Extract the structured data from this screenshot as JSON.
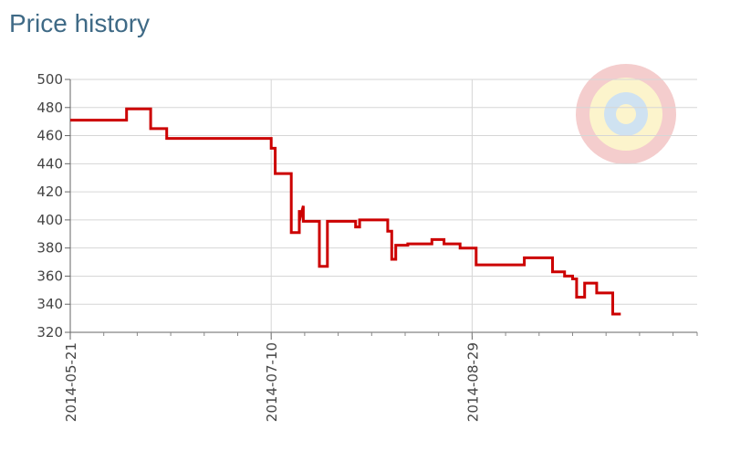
{
  "page": {
    "title": "Price history"
  },
  "chart_data": {
    "type": "line",
    "title": "Price history",
    "xlabel": "",
    "ylabel": "",
    "x_is_date": true,
    "xlim": [
      "2014-05-21",
      "2014-10-24"
    ],
    "ylim": [
      320,
      500
    ],
    "y_ticks": [
      320,
      340,
      360,
      380,
      400,
      420,
      440,
      460,
      480,
      500
    ],
    "x_ticks": [
      "2014-05-21",
      "2014-07-10",
      "2014-08-29"
    ],
    "grid": true,
    "step": true,
    "series": [
      {
        "name": "",
        "color": "#cc0000",
        "points": [
          [
            "2014-05-21",
            471
          ],
          [
            "2014-06-04",
            471
          ],
          [
            "2014-06-04",
            479
          ],
          [
            "2014-06-10",
            479
          ],
          [
            "2014-06-10",
            465
          ],
          [
            "2014-06-14",
            465
          ],
          [
            "2014-06-14",
            458
          ],
          [
            "2014-07-10",
            458
          ],
          [
            "2014-07-10",
            451
          ],
          [
            "2014-07-11",
            451
          ],
          [
            "2014-07-11",
            433
          ],
          [
            "2014-07-15",
            433
          ],
          [
            "2014-07-15",
            391
          ],
          [
            "2014-07-17",
            391
          ],
          [
            "2014-07-17",
            407
          ],
          [
            "2014-07-17",
            399
          ],
          [
            "2014-07-18",
            410
          ],
          [
            "2014-07-18",
            399
          ],
          [
            "2014-07-22",
            399
          ],
          [
            "2014-07-22",
            367
          ],
          [
            "2014-07-24",
            367
          ],
          [
            "2014-07-24",
            399
          ],
          [
            "2014-07-31",
            399
          ],
          [
            "2014-07-31",
            395
          ],
          [
            "2014-08-01",
            395
          ],
          [
            "2014-08-01",
            400
          ],
          [
            "2014-08-08",
            400
          ],
          [
            "2014-08-08",
            392
          ],
          [
            "2014-08-09",
            392
          ],
          [
            "2014-08-09",
            372
          ],
          [
            "2014-08-10",
            372
          ],
          [
            "2014-08-10",
            382
          ],
          [
            "2014-08-13",
            382
          ],
          [
            "2014-08-13",
            383
          ],
          [
            "2014-08-19",
            383
          ],
          [
            "2014-08-19",
            386
          ],
          [
            "2014-08-22",
            386
          ],
          [
            "2014-08-22",
            383
          ],
          [
            "2014-08-26",
            383
          ],
          [
            "2014-08-26",
            380
          ],
          [
            "2014-08-30",
            380
          ],
          [
            "2014-08-30",
            368
          ],
          [
            "2014-09-11",
            368
          ],
          [
            "2014-09-11",
            373
          ],
          [
            "2014-09-18",
            373
          ],
          [
            "2014-09-18",
            363
          ],
          [
            "2014-09-21",
            363
          ],
          [
            "2014-09-21",
            360
          ],
          [
            "2014-09-23",
            360
          ],
          [
            "2014-09-23",
            358
          ],
          [
            "2014-09-24",
            358
          ],
          [
            "2014-09-24",
            345
          ],
          [
            "2014-09-26",
            345
          ],
          [
            "2014-09-26",
            355
          ],
          [
            "2014-09-29",
            355
          ],
          [
            "2014-09-29",
            348
          ],
          [
            "2014-10-03",
            348
          ],
          [
            "2014-10-03",
            333
          ],
          [
            "2014-10-05",
            333
          ]
        ]
      }
    ]
  }
}
